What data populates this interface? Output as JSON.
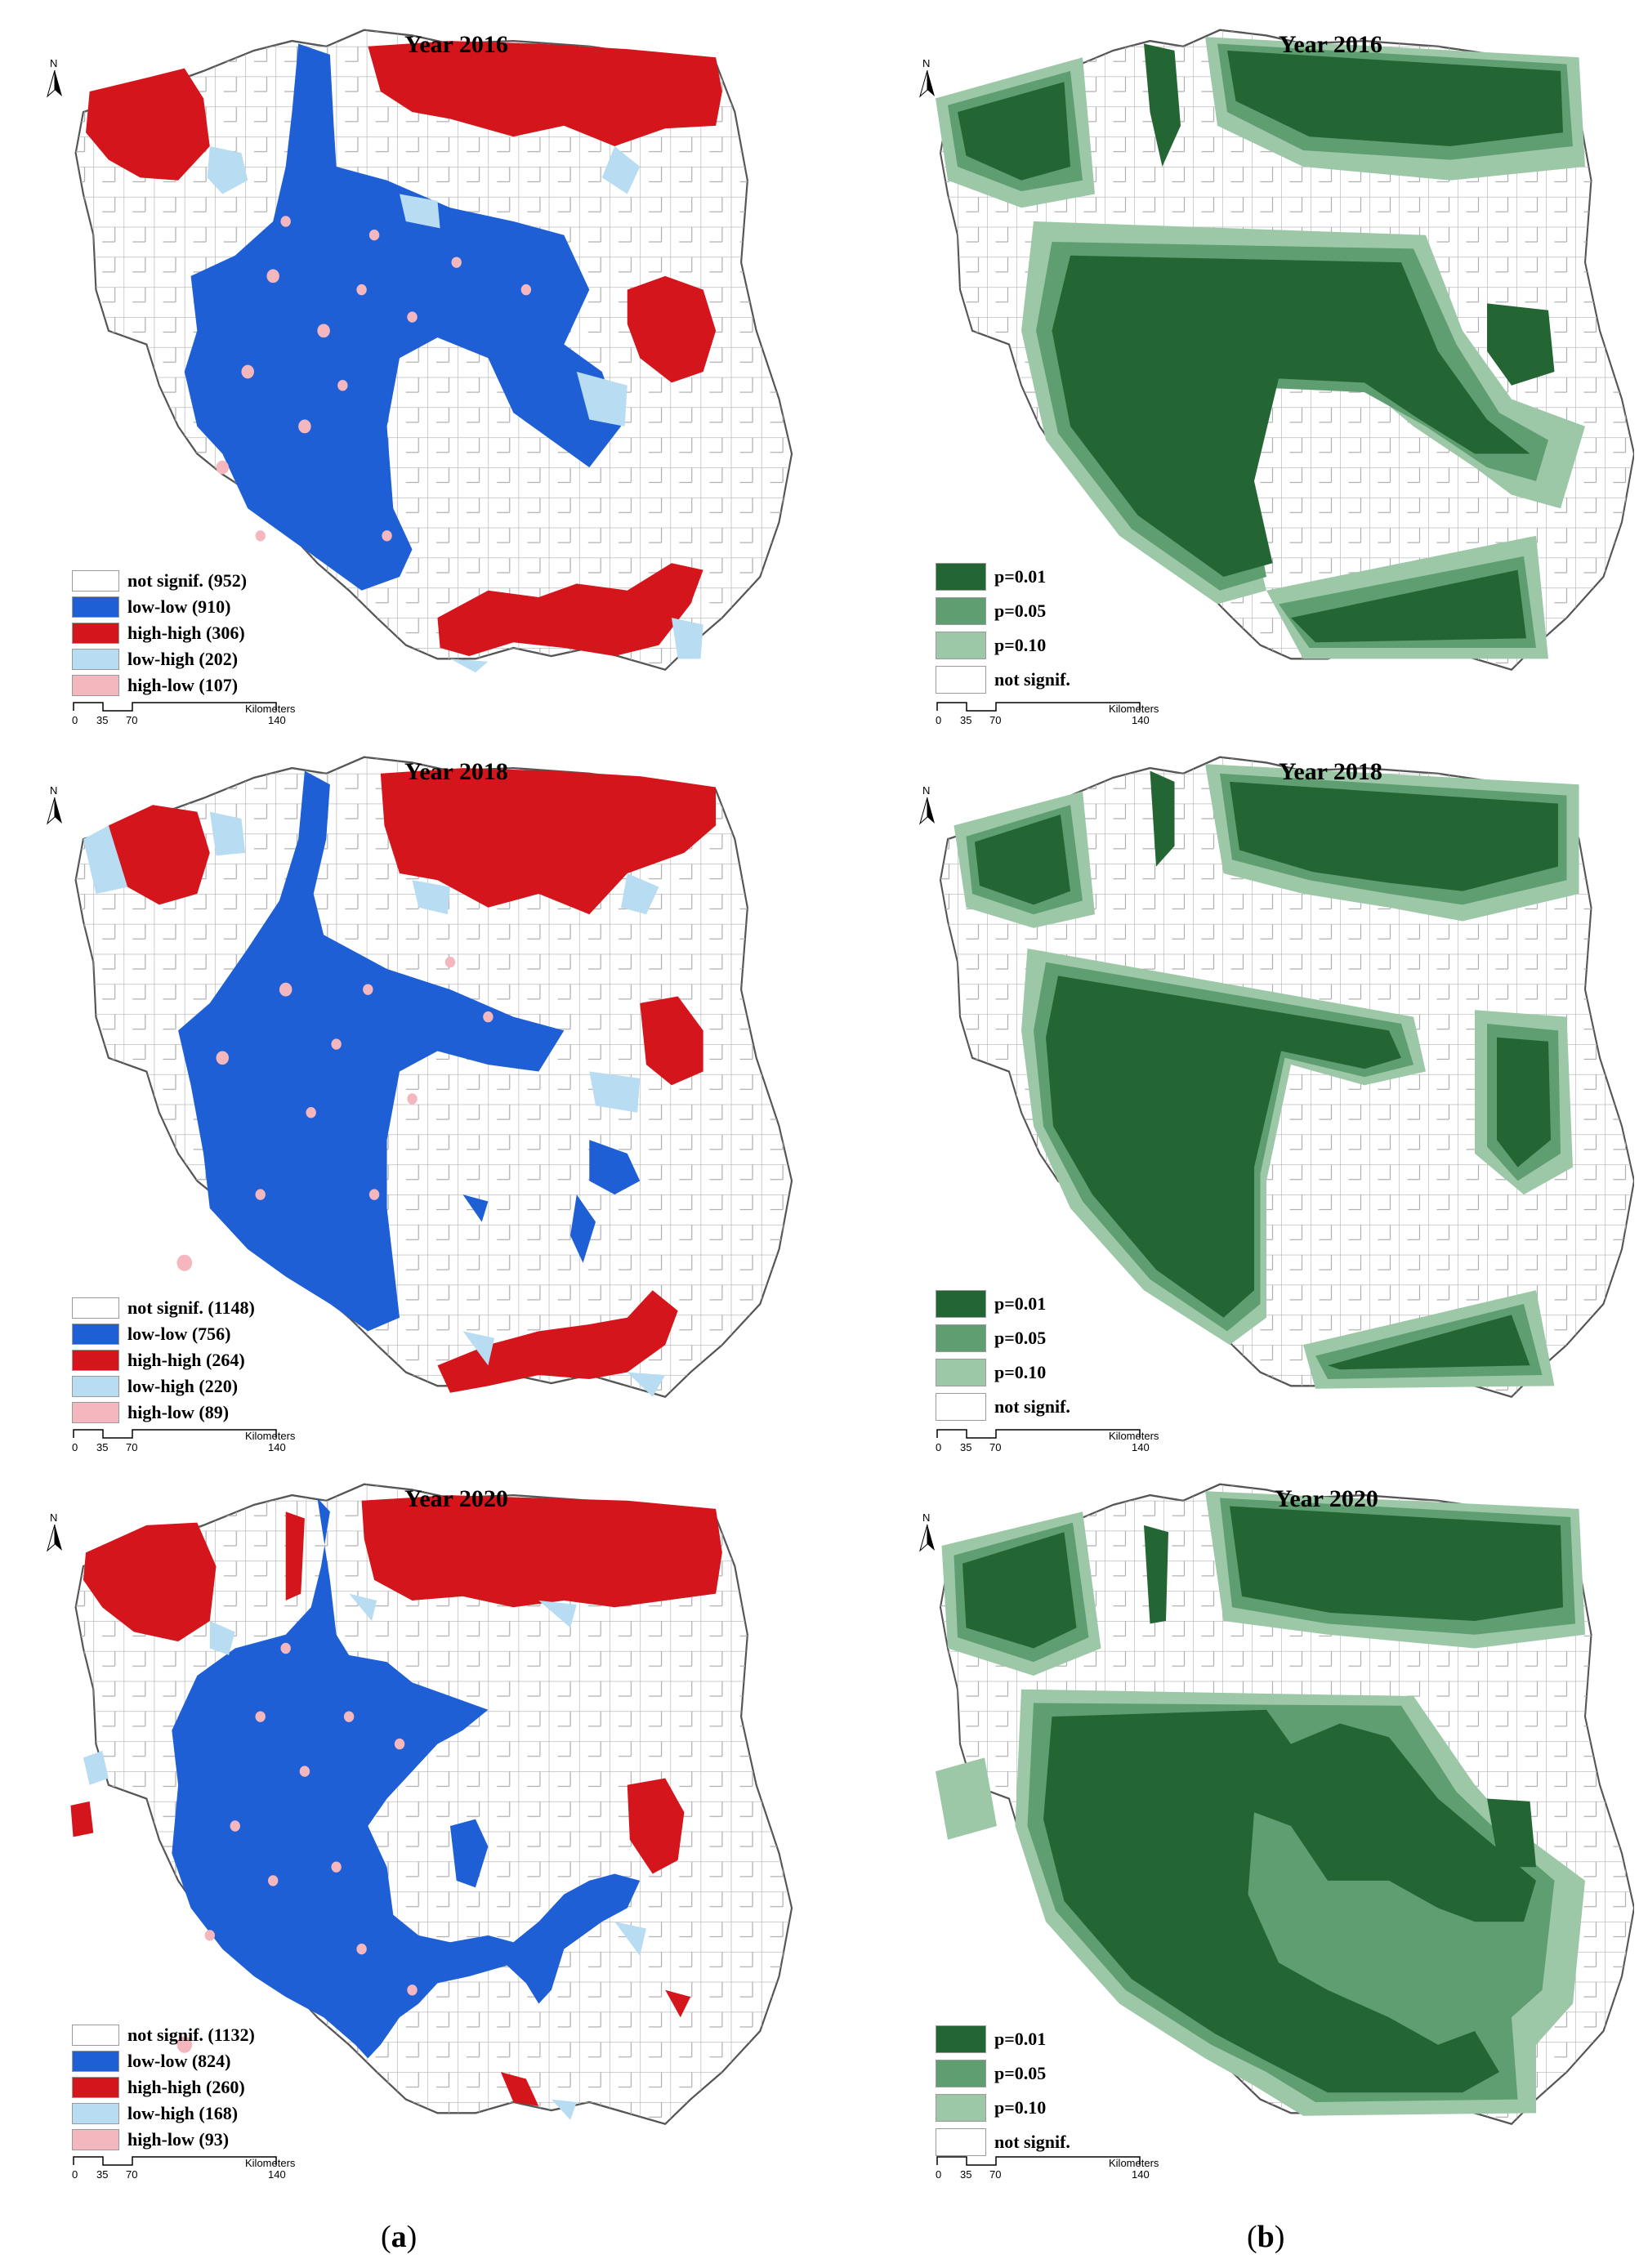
{
  "colors": {
    "not_signif": "#ffffff",
    "low_low": "#1f5fd6",
    "high_high": "#d4161c",
    "low_high": "#b8dcf1",
    "high_low": "#f4b7bd",
    "p001": "#236634",
    "p005": "#5f9e71",
    "p010": "#9cc8a7",
    "border": "#9a9a9a"
  },
  "scale": {
    "ticks": [
      "0",
      "35",
      "70",
      "140"
    ],
    "unit": "Kilometers"
  },
  "north_label": "N",
  "captions": {
    "a": {
      "letter": "a"
    },
    "b": {
      "letter": "b"
    }
  },
  "lisa_maps": [
    {
      "title": "Year 2016",
      "legend": [
        {
          "label": "not signif. (952)",
          "color_key": "not_signif"
        },
        {
          "label": "low-low (910)",
          "color_key": "low_low"
        },
        {
          "label": "high-high (306)",
          "color_key": "high_high"
        },
        {
          "label": "low-high (202)",
          "color_key": "low_high"
        },
        {
          "label": "high-low (107)",
          "color_key": "high_low"
        }
      ]
    },
    {
      "title": "Year 2018",
      "legend": [
        {
          "label": "not signif. (1148)",
          "color_key": "not_signif"
        },
        {
          "label": "low-low (756)",
          "color_key": "low_low"
        },
        {
          "label": "high-high (264)",
          "color_key": "high_high"
        },
        {
          "label": "low-high (220)",
          "color_key": "low_high"
        },
        {
          "label": "high-low (89)",
          "color_key": "high_low"
        }
      ]
    },
    {
      "title": "Year 2020",
      "legend": [
        {
          "label": "not signif. (1132)",
          "color_key": "not_signif"
        },
        {
          "label": "low-low (824)",
          "color_key": "low_low"
        },
        {
          "label": "high-high (260)",
          "color_key": "high_high"
        },
        {
          "label": "low-high (168)",
          "color_key": "low_high"
        },
        {
          "label": "high-low (93)",
          "color_key": "high_low"
        }
      ]
    }
  ],
  "significance_maps": [
    {
      "title": "Year 2016",
      "legend": [
        {
          "label": "p=0.01",
          "color_key": "p001"
        },
        {
          "label": "p=0.05",
          "color_key": "p005"
        },
        {
          "label": "p=0.10",
          "color_key": "p010"
        },
        {
          "label": "not signif.",
          "color_key": "not_signif"
        }
      ]
    },
    {
      "title": "Year 2018",
      "legend": [
        {
          "label": "p=0.01",
          "color_key": "p001"
        },
        {
          "label": "p=0.05",
          "color_key": "p005"
        },
        {
          "label": "p=0.10",
          "color_key": "p010"
        },
        {
          "label": "not signif.",
          "color_key": "not_signif"
        }
      ]
    },
    {
      "title": "Year 2020",
      "legend": [
        {
          "label": "p=0.01",
          "color_key": "p001"
        },
        {
          "label": "p=0.05",
          "color_key": "p005"
        },
        {
          "label": "p=0.10",
          "color_key": "p010"
        },
        {
          "label": "not signif.",
          "color_key": "not_signif"
        }
      ]
    }
  ]
}
